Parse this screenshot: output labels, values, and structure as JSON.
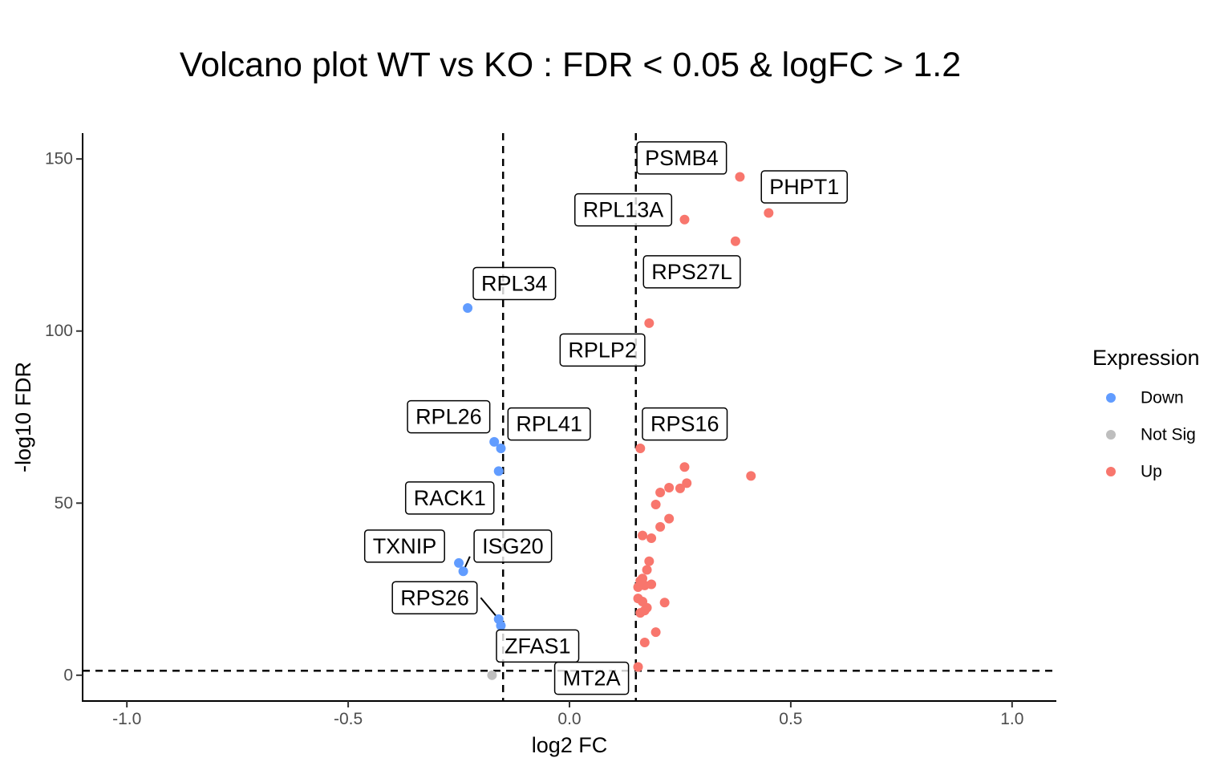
{
  "chart_data": {
    "type": "scatter",
    "title": "Volcano plot WT vs KO : FDR < 0.05 & logFC > 1.2",
    "xlabel": "log2 FC",
    "ylabel": "-log10 FDR",
    "xlim": [
      -1.1,
      1.1
    ],
    "ylim": [
      -7.5,
      157.5
    ],
    "xticks": [
      -1.0,
      -0.5,
      0.0,
      0.5,
      1.0
    ],
    "xtick_labels": [
      "-1.0",
      "-0.5",
      "0.0",
      "0.5",
      "1.0"
    ],
    "yticks": [
      0,
      50,
      100,
      150
    ],
    "ytick_labels": [
      "0",
      "50",
      "100",
      "150"
    ],
    "thresholds": {
      "vlines": [
        -0.15,
        0.15
      ],
      "hline": 1.3
    },
    "grid": false,
    "legend": {
      "title": "Expression",
      "placement": "right",
      "entries": [
        {
          "name": "Down",
          "color": "#619CFF"
        },
        {
          "name": "Not Sig",
          "color": "#BEBEBE"
        },
        {
          "name": "Up",
          "color": "#F8766D"
        }
      ]
    },
    "series": [
      {
        "name": "Down",
        "color": "#619CFF",
        "points": [
          [
            -0.23,
            106.7
          ],
          [
            -0.17,
            67.8
          ],
          [
            -0.155,
            65.9
          ],
          [
            -0.16,
            59.3
          ],
          [
            -0.25,
            32.6
          ],
          [
            -0.24,
            30.2
          ],
          [
            -0.16,
            16.3
          ],
          [
            -0.155,
            14.4
          ]
        ]
      },
      {
        "name": "Not Sig",
        "color": "#BEBEBE",
        "points": [
          [
            -0.175,
            0.0
          ]
        ]
      },
      {
        "name": "Up",
        "color": "#F8766D",
        "points": [
          [
            0.385,
            144.8
          ],
          [
            0.45,
            134.3
          ],
          [
            0.26,
            132.4
          ],
          [
            0.375,
            126.1
          ],
          [
            0.18,
            102.3
          ],
          [
            0.16,
            65.9
          ],
          [
            0.26,
            60.5
          ],
          [
            0.41,
            57.9
          ],
          [
            0.265,
            55.8
          ],
          [
            0.225,
            54.5
          ],
          [
            0.25,
            54.3
          ],
          [
            0.205,
            53.1
          ],
          [
            0.195,
            49.6
          ],
          [
            0.225,
            45.5
          ],
          [
            0.205,
            43.1
          ],
          [
            0.165,
            40.6
          ],
          [
            0.185,
            39.8
          ],
          [
            0.18,
            33.1
          ],
          [
            0.175,
            30.6
          ],
          [
            0.165,
            28.1
          ],
          [
            0.16,
            27.4
          ],
          [
            0.185,
            26.4
          ],
          [
            0.17,
            26.1
          ],
          [
            0.155,
            25.6
          ],
          [
            0.155,
            22.3
          ],
          [
            0.165,
            21.4
          ],
          [
            0.215,
            21.1
          ],
          [
            0.175,
            19.6
          ],
          [
            0.17,
            18.8
          ],
          [
            0.16,
            18.1
          ],
          [
            0.195,
            12.5
          ],
          [
            0.17,
            9.5
          ],
          [
            0.155,
            2.4
          ]
        ]
      }
    ],
    "annotations": [
      {
        "text": "PSMB4",
        "x": 0.2535,
        "y": 150.3
      },
      {
        "text": "PHPT1",
        "x": 0.5305,
        "y": 141.9
      },
      {
        "text": "RPL13A",
        "x": 0.1215,
        "y": 135.2
      },
      {
        "text": "RPS27L",
        "x": 0.2765,
        "y": 117.2
      },
      {
        "text": "RPL34",
        "x": -0.1245,
        "y": 113.8
      },
      {
        "text": "RPLP2",
        "x": 0.0745,
        "y": 94.5
      },
      {
        "text": "RPL26",
        "x": -0.273,
        "y": 75.1
      },
      {
        "text": "RPL41",
        "x": -0.046,
        "y": 73.0
      },
      {
        "text": "RPS16",
        "x": 0.2605,
        "y": 73.0
      },
      {
        "text": "RACK1",
        "x": -0.2705,
        "y": 51.5
      },
      {
        "text": "TXNIP",
        "x": -0.3725,
        "y": 37.5
      },
      {
        "text": "ISG20",
        "x": -0.128,
        "y": 37.5
      },
      {
        "text": "RPS26",
        "x": -0.3045,
        "y": 22.5
      },
      {
        "text": "ZFAS1",
        "x": -0.072,
        "y": 8.5
      },
      {
        "text": "MT2A",
        "x": 0.05,
        "y": -0.9
      }
    ],
    "segments": [
      {
        "from": [
          -0.24,
          30.2
        ],
        "to": [
          -0.225,
          34.5
        ]
      },
      {
        "from": [
          -0.16,
          16.3
        ],
        "to": [
          -0.2005,
          22.5
        ]
      }
    ]
  }
}
